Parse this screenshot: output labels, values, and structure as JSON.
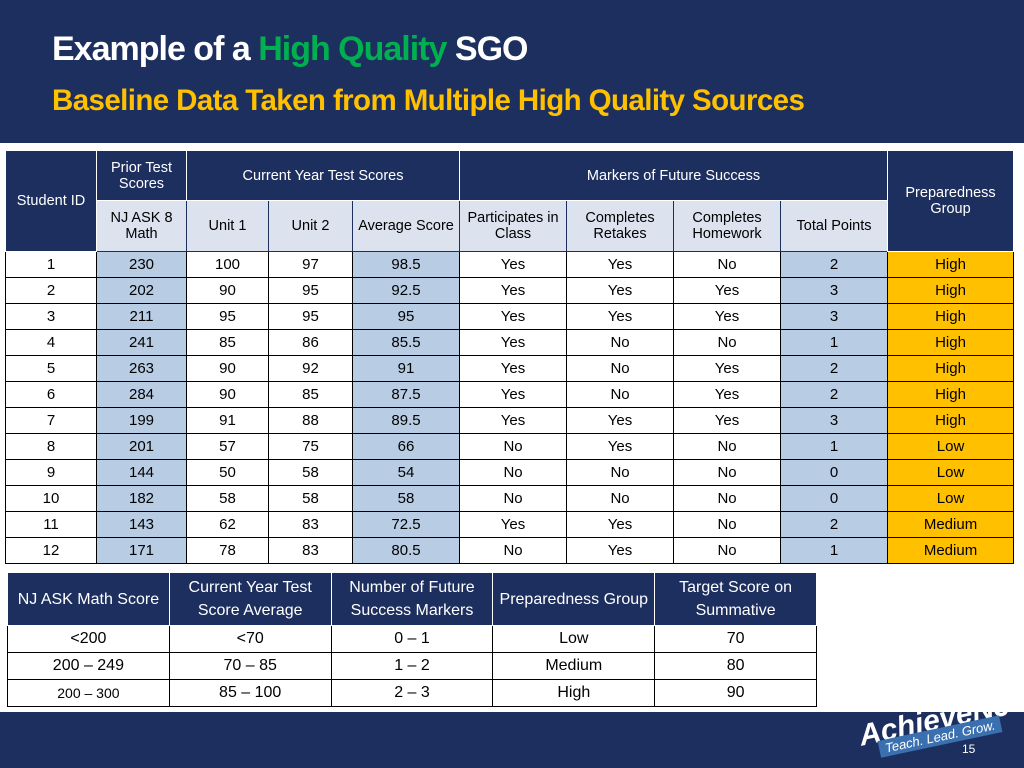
{
  "header": {
    "title_prefix": "Example of a",
    "title_highlight": "High Quality",
    "title_suffix": "SGO",
    "subtitle": "Baseline Data Taken from Multiple High Quality Sources"
  },
  "table": {
    "group_headers": [
      "Student ID",
      "Prior Test Scores",
      "Current Year Test Scores",
      "Markers of Future Success",
      "Preparedness Group"
    ],
    "sub_headers": [
      "NJ ASK 8 Math",
      "Unit 1",
      "Unit 2",
      "Average Score",
      "Participates in Class",
      "Completes Retakes",
      "Completes Homework",
      "Total Points"
    ],
    "rows": [
      [
        "1",
        "230",
        "100",
        "97",
        "98.5",
        "Yes",
        "Yes",
        "No",
        "2",
        "High"
      ],
      [
        "2",
        "202",
        "90",
        "95",
        "92.5",
        "Yes",
        "Yes",
        "Yes",
        "3",
        "High"
      ],
      [
        "3",
        "211",
        "95",
        "95",
        "95",
        "Yes",
        "Yes",
        "Yes",
        "3",
        "High"
      ],
      [
        "4",
        "241",
        "85",
        "86",
        "85.5",
        "Yes",
        "No",
        "No",
        "1",
        "High"
      ],
      [
        "5",
        "263",
        "90",
        "92",
        "91",
        "Yes",
        "No",
        "Yes",
        "2",
        "High"
      ],
      [
        "6",
        "284",
        "90",
        "85",
        "87.5",
        "Yes",
        "No",
        "Yes",
        "2",
        "High"
      ],
      [
        "7",
        "199",
        "91",
        "88",
        "89.5",
        "Yes",
        "Yes",
        "Yes",
        "3",
        "High"
      ],
      [
        "8",
        "201",
        "57",
        "75",
        "66",
        "No",
        "Yes",
        "No",
        "1",
        "Low"
      ],
      [
        "9",
        "144",
        "50",
        "58",
        "54",
        "No",
        "No",
        "No",
        "0",
        "Low"
      ],
      [
        "10",
        "182",
        "58",
        "58",
        "58",
        "No",
        "No",
        "No",
        "0",
        "Low"
      ],
      [
        "11",
        "143",
        "62",
        "83",
        "72.5",
        "Yes",
        "Yes",
        "No",
        "2",
        "Medium"
      ],
      [
        "12",
        "171",
        "78",
        "83",
        "80.5",
        "No",
        "Yes",
        "No",
        "1",
        "Medium"
      ]
    ]
  },
  "key_table": {
    "headers": [
      "NJ ASK Math Score",
      "Current Year Test Score Average",
      "Number of Future Success Markers",
      "Preparedness Group",
      "Target Score on Summative"
    ],
    "rows": [
      [
        "<200",
        "<70",
        "0 – 1",
        "Low",
        "70"
      ],
      [
        "200 – 249",
        "70 – 85",
        "1 – 2",
        "Medium",
        "80"
      ],
      [
        "200 – 300",
        "85 – 100",
        "2 – 3",
        "High",
        "90"
      ]
    ]
  },
  "footer": {
    "logo": "AchieveNJ",
    "tagline": "Teach. Lead. Grow.",
    "page_number": "15"
  }
}
